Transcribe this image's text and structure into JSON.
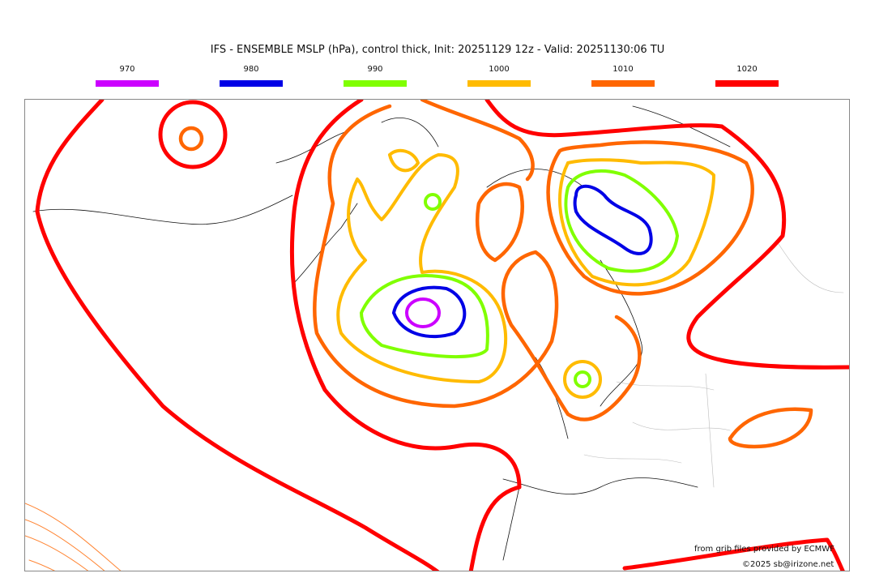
{
  "title": "IFS - ENSEMBLE MSLP (hPa), control thick, Init: 20251129 12z - Valid: 20251130:06 TU",
  "legend": [
    {
      "label": "970",
      "color": "#cc00ff"
    },
    {
      "label": "980",
      "color": "#0000e6"
    },
    {
      "label": "990",
      "color": "#80ff00"
    },
    {
      "label": "1000",
      "color": "#ffbb00"
    },
    {
      "label": "1010",
      "color": "#ff6600"
    },
    {
      "label": "1020",
      "color": "#ff0000"
    }
  ],
  "credits": {
    "source": "from grib files provided by ECMWF",
    "copyright": "©2025 sb@irizone.net"
  }
}
